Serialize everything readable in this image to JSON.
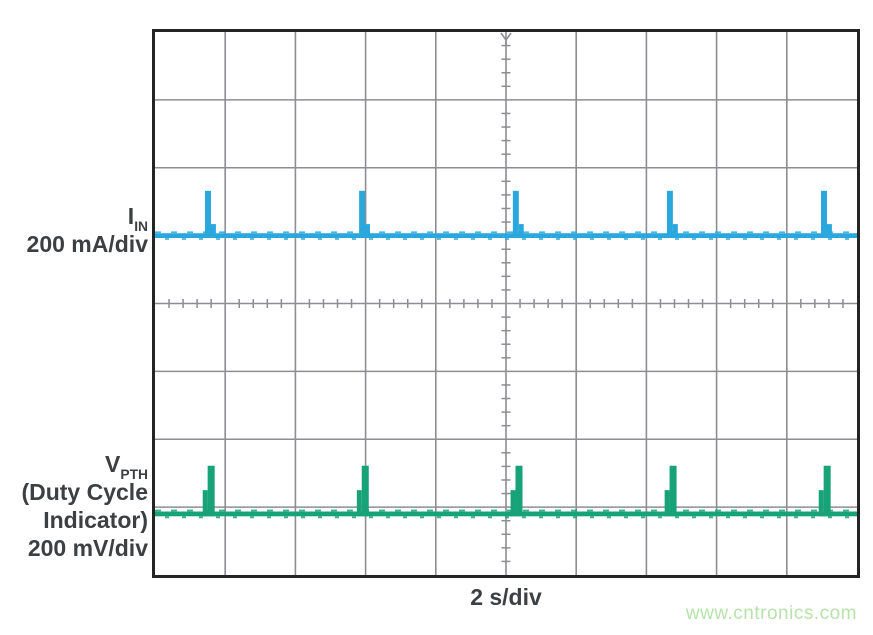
{
  "figure": {
    "watermark": "www.cntronics.com"
  },
  "labels": {
    "ch1": {
      "symbol": "I",
      "subscript": "IN",
      "scale": "200 mA/div"
    },
    "ch2": {
      "symbol": "V",
      "subscript": "PTH",
      "note_line1": "(Duty Cycle",
      "note_line2": "Indicator)",
      "scale": "200 mV/div"
    }
  },
  "chart_data": {
    "type": "line",
    "subtype": "oscilloscope",
    "title": "",
    "x_axis": {
      "label": "2 s/div",
      "seconds_per_div": 2,
      "divisions": 10
    },
    "y_axis": {
      "divisions": 8
    },
    "graticule": {
      "minor_per_div": 5,
      "color": "#8d8d92",
      "border_color": "#242424",
      "background": "#ffffff",
      "trigger_marker": "top-center"
    },
    "series": [
      {
        "name": "IIN",
        "display_label": "I_IN 200 mA/div",
        "color": "#2aa7dd",
        "scale_per_div": "200 mA",
        "baseline_div_from_top": 3.0,
        "baseline_level": "0 mA (flat with small noise)",
        "pulse_times_s": [
          -8.49,
          -4.1,
          0.28,
          4.67,
          9.06
        ],
        "pulse_period_s": 4.4,
        "pulse_amplitude_div": 0.66,
        "pulse_amplitude_approx_mA": 130,
        "pulse_width_s": 0.17,
        "step_amplitude_div": 0.17,
        "step_width_s": 0.14,
        "step_side": "right"
      },
      {
        "name": "VPTH",
        "display_label": "V_PTH (Duty Cycle Indicator) 200 mV/div",
        "color": "#17a277",
        "scale_per_div": "200 mV",
        "baseline_div_from_top": 7.1,
        "baseline_level": "0 mV (flat with small noise)",
        "pulse_times_s": [
          -8.4,
          -4.01,
          0.37,
          4.76,
          9.15
        ],
        "pulse_period_s": 4.4,
        "pulse_amplitude_div": 0.71,
        "pulse_amplitude_approx_mV": 140,
        "pulse_width_s": 0.2,
        "step_amplitude_div": 0.35,
        "step_width_s": 0.14,
        "step_side": "left"
      }
    ]
  }
}
